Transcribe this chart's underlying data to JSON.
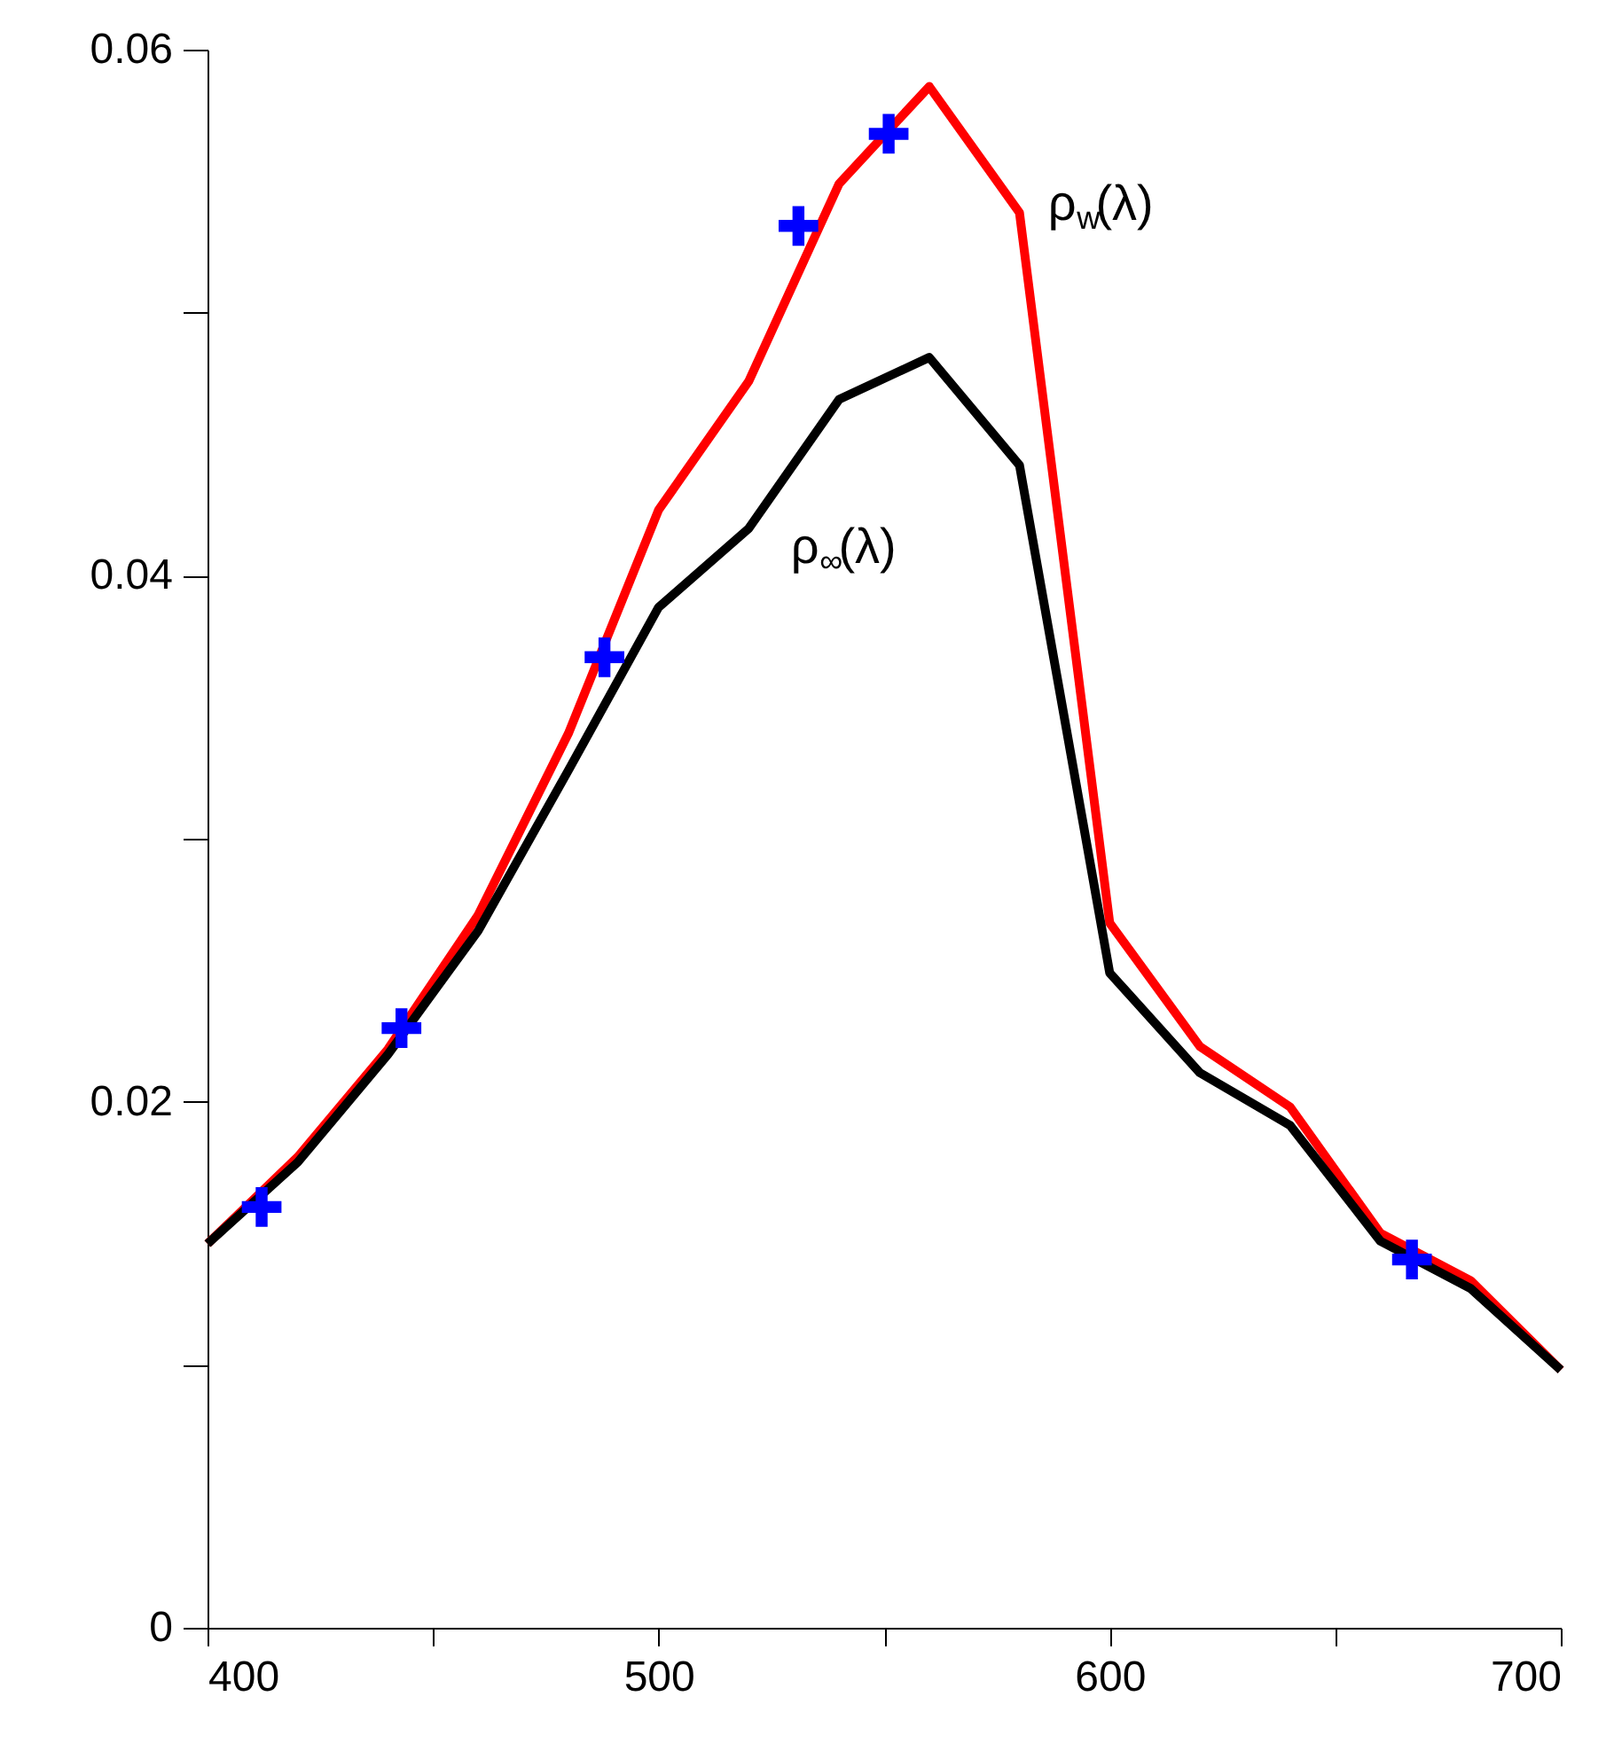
{
  "chart_data": {
    "type": "line",
    "x": [
      400,
      420,
      440,
      460,
      480,
      500,
      520,
      540,
      560,
      580,
      600,
      620,
      640,
      660,
      680,
      700
    ],
    "series": [
      {
        "name": "ρ$_{w}$(λ)",
        "color": "#ff0000",
        "values": [
          0.0146,
          0.0179,
          0.022,
          0.0271,
          0.034,
          0.0425,
          0.0474,
          0.0549,
          0.0586,
          0.0538,
          0.0268,
          0.0221,
          0.0198,
          0.015,
          0.0132,
          0.0098
        ]
      },
      {
        "name": "ρ$_{∞}$(λ)",
        "color": "#000000",
        "values": [
          0.0146,
          0.0177,
          0.0218,
          0.0265,
          0.0326,
          0.0388,
          0.0418,
          0.0467,
          0.0483,
          0.0442,
          0.0249,
          0.0211,
          0.0191,
          0.0147,
          0.0129,
          0.0098
        ]
      },
      {
        "type": "scatter",
        "marker": "cross",
        "color": "#0000ff",
        "x": [
          412,
          443,
          488,
          531,
          551,
          667
        ],
        "values": [
          0.016,
          0.0228,
          0.0369,
          0.0533,
          0.0568,
          0.014
        ]
      }
    ],
    "xlim": [
      400,
      700
    ],
    "ylim": [
      0,
      0.06
    ],
    "xticks": [
      400,
      {
        "value": 450,
        "label": null
      },
      500,
      {
        "value": 550,
        "label": null
      },
      600,
      {
        "value": 650,
        "label": null
      },
      700
    ],
    "yticks": [
      0,
      {
        "value": 0.01,
        "label": null
      },
      0.02,
      {
        "value": 0.03,
        "label": null
      },
      0.04,
      {
        "value": 0.05,
        "label": null
      },
      0.06
    ],
    "grid": false,
    "line_style": "solid"
  }
}
